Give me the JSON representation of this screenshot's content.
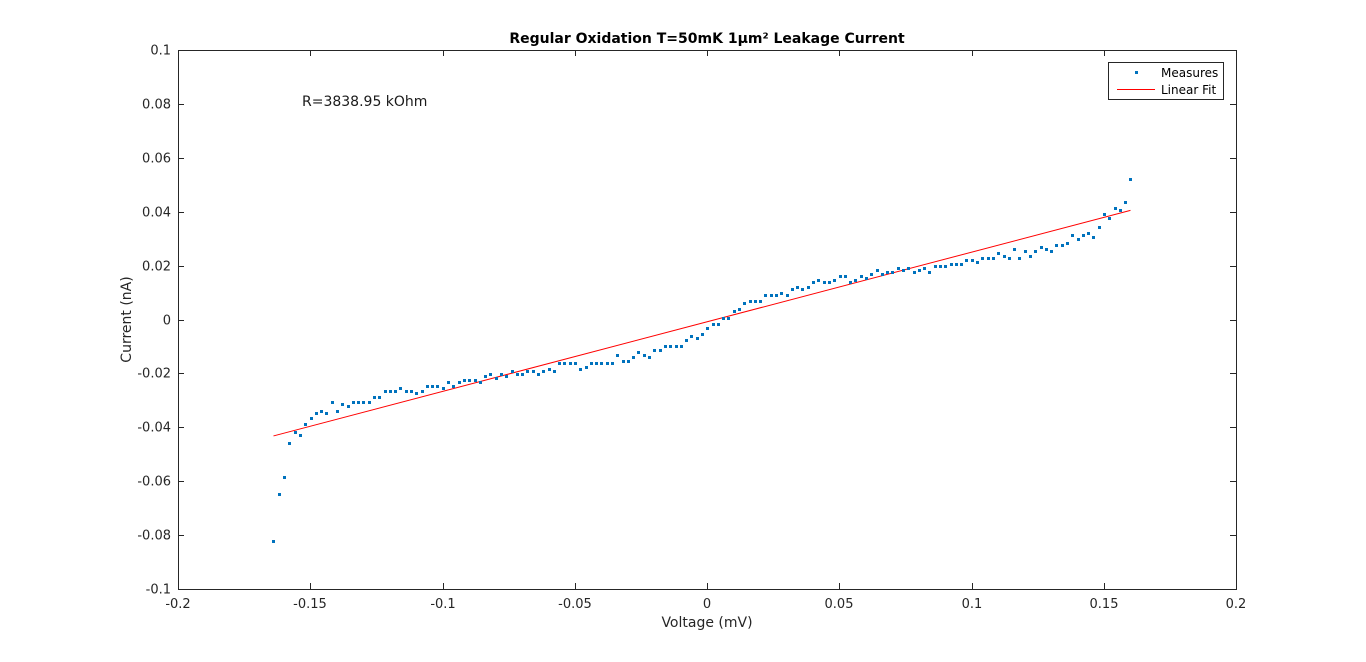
{
  "chart_data": {
    "type": "scatter",
    "title": "Regular Oxidation T=50mK 1µm² Leakage Current",
    "xlabel": "Voltage (mV)",
    "ylabel": "Current (nA)",
    "xlim": [
      -0.2,
      0.2
    ],
    "ylim": [
      -0.1,
      0.1
    ],
    "xticks": [
      -0.2,
      -0.15,
      -0.1,
      -0.05,
      0,
      0.05,
      0.1,
      0.15,
      0.2
    ],
    "yticks": [
      -0.1,
      -0.08,
      -0.06,
      -0.04,
      -0.02,
      0,
      0.02,
      0.04,
      0.06,
      0.08,
      0.1
    ],
    "xtick_labels": [
      "-0.2",
      "-0.15",
      "-0.1",
      "-0.05",
      "0",
      "0.05",
      "0.1",
      "0.15",
      "0.2"
    ],
    "ytick_labels": [
      "-0.1",
      "-0.08",
      "-0.06",
      "-0.04",
      "-0.02",
      "0",
      "0.02",
      "0.04",
      "0.06",
      "0.08",
      "0.1"
    ],
    "grid": false,
    "legend_position": "top-right",
    "annotation": "R=3838.95 kOhm",
    "colors": {
      "measures": "#0072bd",
      "fit": "#ff0000"
    },
    "series": [
      {
        "name": "Measures",
        "kind": "points",
        "points": [
          [
            -0.1639,
            -0.0822
          ],
          [
            -0.1619,
            -0.0646
          ],
          [
            -0.1599,
            -0.0583
          ],
          [
            -0.1579,
            -0.0457
          ],
          [
            -0.1559,
            -0.0418
          ],
          [
            -0.1539,
            -0.0427
          ],
          [
            -0.1519,
            -0.0387
          ],
          [
            -0.1499,
            -0.0367
          ],
          [
            -0.1479,
            -0.0347
          ],
          [
            -0.1459,
            -0.0338
          ],
          [
            -0.1439,
            -0.0347
          ],
          [
            -0.1419,
            -0.0305
          ],
          [
            -0.1399,
            -0.0338
          ],
          [
            -0.1379,
            -0.0313
          ],
          [
            -0.1359,
            -0.0321
          ],
          [
            -0.1339,
            -0.0305
          ],
          [
            -0.1319,
            -0.0305
          ],
          [
            -0.1299,
            -0.0305
          ],
          [
            -0.1279,
            -0.0305
          ],
          [
            -0.1259,
            -0.0289
          ],
          [
            -0.1239,
            -0.0289
          ],
          [
            -0.1219,
            -0.0264
          ],
          [
            -0.1199,
            -0.0264
          ],
          [
            -0.1179,
            -0.0264
          ],
          [
            -0.1159,
            -0.0256
          ],
          [
            -0.1139,
            -0.0264
          ],
          [
            -0.1119,
            -0.0264
          ],
          [
            -0.1099,
            -0.0272
          ],
          [
            -0.1079,
            -0.0264
          ],
          [
            -0.1059,
            -0.0248
          ],
          [
            -0.1039,
            -0.0248
          ],
          [
            -0.1019,
            -0.0248
          ],
          [
            -0.0999,
            -0.0256
          ],
          [
            -0.0979,
            -0.0232
          ],
          [
            -0.0959,
            -0.0248
          ],
          [
            -0.0939,
            -0.0232
          ],
          [
            -0.0919,
            -0.0224
          ],
          [
            -0.0899,
            -0.0224
          ],
          [
            -0.0879,
            -0.0224
          ],
          [
            -0.0859,
            -0.0232
          ],
          [
            -0.0839,
            -0.0209
          ],
          [
            -0.0819,
            -0.0201
          ],
          [
            -0.0799,
            -0.0216
          ],
          [
            -0.0779,
            -0.0201
          ],
          [
            -0.0759,
            -0.0209
          ],
          [
            -0.0739,
            -0.0192
          ],
          [
            -0.0719,
            -0.0201
          ],
          [
            -0.0699,
            -0.0201
          ],
          [
            -0.0679,
            -0.0192
          ],
          [
            -0.0659,
            -0.0192
          ],
          [
            -0.0639,
            -0.0201
          ],
          [
            -0.0619,
            -0.0192
          ],
          [
            -0.0599,
            -0.0184
          ],
          [
            -0.0579,
            -0.0192
          ],
          [
            -0.0559,
            -0.0162
          ],
          [
            -0.0539,
            -0.0162
          ],
          [
            -0.0519,
            -0.0162
          ],
          [
            -0.0499,
            -0.0162
          ],
          [
            -0.0479,
            -0.0184
          ],
          [
            -0.0459,
            -0.0177
          ],
          [
            -0.0439,
            -0.0162
          ],
          [
            -0.0419,
            -0.0162
          ],
          [
            -0.0399,
            -0.0162
          ],
          [
            -0.0379,
            -0.0162
          ],
          [
            -0.0359,
            -0.0162
          ],
          [
            -0.0339,
            -0.013
          ],
          [
            -0.0319,
            -0.0155
          ],
          [
            -0.0299,
            -0.0155
          ],
          [
            -0.0279,
            -0.0138
          ],
          [
            -0.0259,
            -0.0122
          ],
          [
            -0.0239,
            -0.013
          ],
          [
            -0.0219,
            -0.0138
          ],
          [
            -0.0199,
            -0.0115
          ],
          [
            -0.0179,
            -0.0115
          ],
          [
            -0.0159,
            -0.0099
          ],
          [
            -0.0139,
            -0.0099
          ],
          [
            -0.0119,
            -0.0099
          ],
          [
            -0.0099,
            -0.0099
          ],
          [
            -0.0079,
            -0.0077
          ],
          [
            -0.0059,
            -0.0062
          ],
          [
            -0.0039,
            -0.007
          ],
          [
            -0.0019,
            -0.0054
          ],
          [
            0.0001,
            -0.0031
          ],
          [
            0.0021,
            -0.0016
          ],
          [
            0.0041,
            -0.0016
          ],
          [
            0.0061,
            0.0007
          ],
          [
            0.0081,
            0.0007
          ],
          [
            0.0101,
            0.003
          ],
          [
            0.0121,
            0.0038
          ],
          [
            0.0141,
            0.0061
          ],
          [
            0.0161,
            0.0068
          ],
          [
            0.0181,
            0.0068
          ],
          [
            0.0201,
            0.0068
          ],
          [
            0.0221,
            0.0091
          ],
          [
            0.0241,
            0.0091
          ],
          [
            0.0261,
            0.0091
          ],
          [
            0.0281,
            0.0099
          ],
          [
            0.0301,
            0.0091
          ],
          [
            0.0321,
            0.0115
          ],
          [
            0.0341,
            0.0122
          ],
          [
            0.0361,
            0.0115
          ],
          [
            0.0381,
            0.0122
          ],
          [
            0.0401,
            0.0138
          ],
          [
            0.0421,
            0.0145
          ],
          [
            0.0441,
            0.0138
          ],
          [
            0.0461,
            0.0138
          ],
          [
            0.0481,
            0.0145
          ],
          [
            0.0501,
            0.016
          ],
          [
            0.0521,
            0.016
          ],
          [
            0.0541,
            0.0138
          ],
          [
            0.0561,
            0.0145
          ],
          [
            0.0581,
            0.016
          ],
          [
            0.0601,
            0.0153
          ],
          [
            0.0621,
            0.0168
          ],
          [
            0.0641,
            0.0183
          ],
          [
            0.0661,
            0.0168
          ],
          [
            0.0681,
            0.0176
          ],
          [
            0.0701,
            0.0176
          ],
          [
            0.0721,
            0.0191
          ],
          [
            0.0741,
            0.0183
          ],
          [
            0.0761,
            0.0191
          ],
          [
            0.0781,
            0.0176
          ],
          [
            0.0801,
            0.0183
          ],
          [
            0.0821,
            0.0191
          ],
          [
            0.0841,
            0.0176
          ],
          [
            0.0861,
            0.0199
          ],
          [
            0.0881,
            0.0199
          ],
          [
            0.0901,
            0.0199
          ],
          [
            0.0921,
            0.0207
          ],
          [
            0.0941,
            0.0207
          ],
          [
            0.0961,
            0.0207
          ],
          [
            0.0981,
            0.0222
          ],
          [
            0.1001,
            0.0222
          ],
          [
            0.1021,
            0.0214
          ],
          [
            0.1041,
            0.023
          ],
          [
            0.1061,
            0.023
          ],
          [
            0.1081,
            0.023
          ],
          [
            0.1101,
            0.0245
          ],
          [
            0.1121,
            0.0237
          ],
          [
            0.1141,
            0.023
          ],
          [
            0.1161,
            0.026
          ],
          [
            0.1181,
            0.023
          ],
          [
            0.1201,
            0.0253
          ],
          [
            0.1221,
            0.0237
          ],
          [
            0.1241,
            0.0253
          ],
          [
            0.1261,
            0.0268
          ],
          [
            0.1281,
            0.026
          ],
          [
            0.1301,
            0.0253
          ],
          [
            0.1321,
            0.0276
          ],
          [
            0.1341,
            0.0276
          ],
          [
            0.1361,
            0.0284
          ],
          [
            0.1381,
            0.0314
          ],
          [
            0.1401,
            0.0299
          ],
          [
            0.1421,
            0.0314
          ],
          [
            0.1441,
            0.0322
          ],
          [
            0.1461,
            0.0306
          ],
          [
            0.1481,
            0.0345
          ],
          [
            0.1501,
            0.0391
          ],
          [
            0.1521,
            0.0375
          ],
          [
            0.1541,
            0.0414
          ],
          [
            0.1561,
            0.0406
          ],
          [
            0.1581,
            0.0437
          ],
          [
            0.1601,
            0.0521
          ]
        ]
      },
      {
        "name": "Linear Fit",
        "kind": "line",
        "points": [
          [
            -0.1639,
            -0.0432
          ],
          [
            0.1601,
            0.0405
          ]
        ]
      }
    ]
  }
}
